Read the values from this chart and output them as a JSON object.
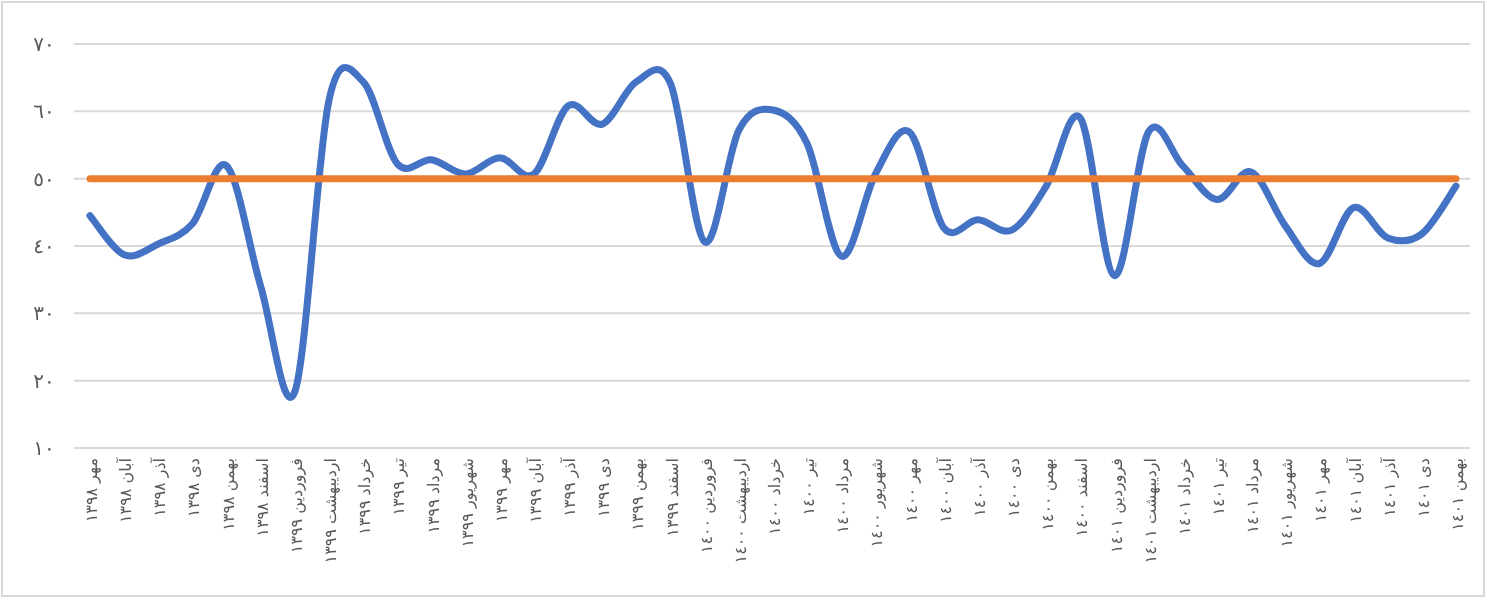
{
  "chart_data": {
    "type": "line",
    "categories": [
      "مهر ١٣٩٨",
      "آبان ١٣٩٨",
      "آذر ١٣٩٨",
      "دی ١٣٩٨",
      "بهمن ١٣٩٨",
      "اسفند ١٣٩٨",
      "فروردین ١٣٩٩",
      "اردیبهشت ١٣٩٩",
      "خرداد ١٣٩٩",
      "تیر ١٣٩٩",
      "مرداد ١٣٩٩",
      "شهریور ١٣٩٩",
      "مهر ١٣٩٩",
      "آبان ١٣٩٩",
      "آذر ١٣٩٩",
      "دی ١٣٩٩",
      "بهمن ١٣٩٩",
      "اسفند ١٣٩٩",
      "فروردین ١٤٠٠",
      "اردیبهشت ١٤٠٠",
      "خرداد ١٤٠٠",
      "تیر ١٤٠٠",
      "مرداد ١٤٠٠",
      "شهریور ١٤٠٠",
      "مهر ١٤٠٠",
      "آبان ١٤٠٠",
      "آذر ١٤٠٠",
      "دی ١٤٠٠",
      "بهمن ١٤٠٠",
      "اسفند ١٤٠٠",
      "فروردین ١٤٠١",
      "اردیبهشت ١٤٠١",
      "خرداد ١٤٠١",
      "تیر ١٤٠١",
      "مرداد ١٤٠١",
      "شهریور ١٤٠١",
      "مهر ١٤٠١",
      "آبان ١٤٠١",
      "آذر ١٤٠١",
      "دی ١٤٠١",
      "بهمن ١٤٠١"
    ],
    "series": [
      {
        "color": "#4472c4",
        "values": [
          44.5,
          38.7,
          40.3,
          43.3,
          51.9,
          34,
          18.4,
          61.7,
          64.4,
          52.2,
          52.8,
          50.7,
          53.1,
          50.7,
          60.8,
          58.1,
          64.4,
          64.1,
          40.6,
          57.2,
          60.2,
          55.2,
          38.5,
          50.7,
          56.9,
          42.7,
          43.9,
          42.4,
          48.9,
          59,
          35.6,
          57,
          51.9,
          46.9,
          51,
          43,
          37.4,
          45.7,
          41.2,
          41.8,
          48.9
        ]
      }
    ],
    "ref_lines": [
      {
        "axis": "y",
        "value": 50,
        "color": "#ed7d31"
      }
    ],
    "ylim": [
      10,
      70
    ],
    "yticks": [
      {
        "value": 10,
        "label": "١٠"
      },
      {
        "value": 20,
        "label": "٢٠"
      },
      {
        "value": 30,
        "label": "٣٠"
      },
      {
        "value": 40,
        "label": "٤٠"
      },
      {
        "value": 50,
        "label": "٥٠"
      },
      {
        "value": 60,
        "label": "٦٠"
      },
      {
        "value": 70,
        "label": "٧٠"
      }
    ],
    "grid": "y",
    "marker": "none",
    "line_style": "solid"
  }
}
